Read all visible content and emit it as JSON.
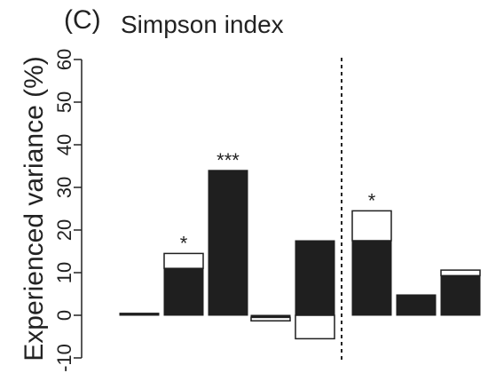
{
  "figure": {
    "panel_label": "(C)",
    "title": "Simpson index"
  },
  "chart_data": {
    "type": "bar",
    "title": "Simpson index",
    "ylabel": "Experienced variance (%)",
    "ylim": [
      -10,
      60
    ],
    "yticks": [
      -10,
      0,
      10,
      20,
      30,
      40,
      50,
      60
    ],
    "yticks_labels": [
      "-10",
      "0",
      "10",
      "20",
      "30",
      "40",
      "50",
      "60"
    ],
    "grid": false,
    "legend": "none",
    "divider_after_index": 4,
    "series": [
      {
        "name": "",
        "color": "#1f1f1f",
        "values": [
          0.5,
          11,
          34,
          -0.5,
          17.5,
          17.5,
          4.8,
          9.3
        ]
      },
      {
        "name": "",
        "color": "#ffffff",
        "values": [
          0,
          3.5,
          0,
          -0.8,
          -5.5,
          7,
          0,
          1.3
        ]
      }
    ],
    "annotations": [
      "",
      "*",
      "***",
      "",
      "",
      "*",
      "",
      ""
    ]
  }
}
